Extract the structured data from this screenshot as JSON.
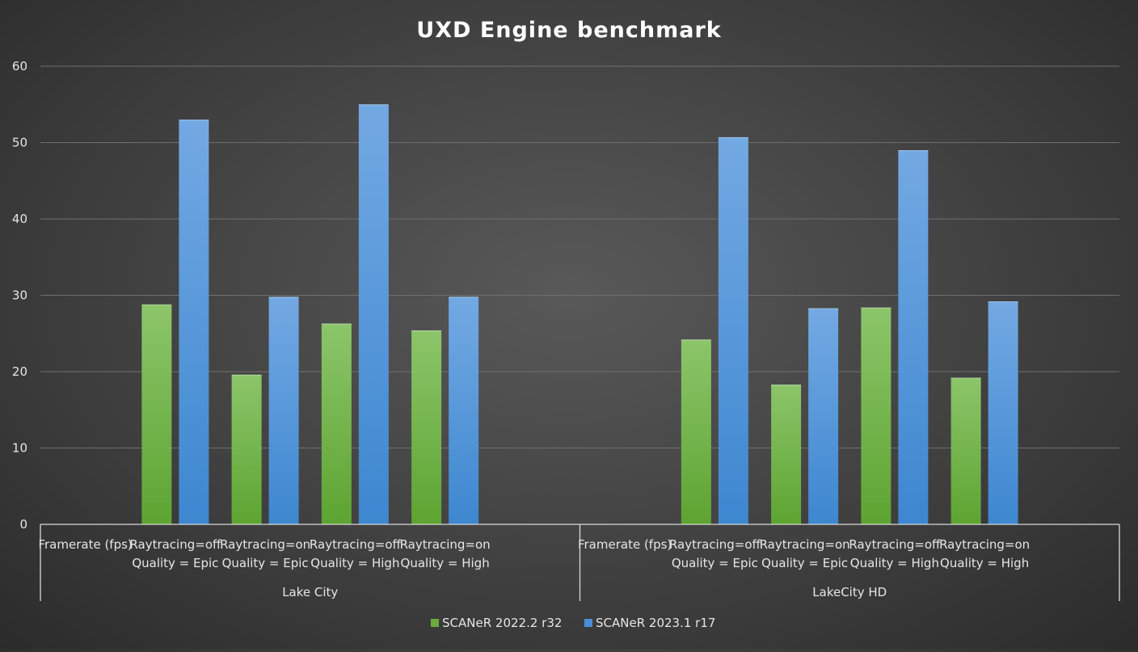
{
  "chart_data": {
    "type": "bar",
    "title": "UXD Engine benchmark",
    "ylim": [
      0,
      60
    ],
    "yticks": [
      0,
      10,
      20,
      30,
      40,
      50,
      60
    ],
    "grid": true,
    "legend_position": "bottom",
    "groups": [
      {
        "name": "Lake City",
        "categories": [
          [
            "Framerate (fps)"
          ],
          [
            "Raytracing=off",
            "Quality = Epic"
          ],
          [
            "Raytracing=on",
            "Quality = Epic"
          ],
          [
            "Raytracing=off",
            "Quality = High"
          ],
          [
            "Raytracing=on",
            "Quality = High"
          ]
        ]
      },
      {
        "name": "LakeCity HD",
        "categories": [
          [
            "Framerate (fps)"
          ],
          [
            "Raytracing=off",
            "Quality = Epic"
          ],
          [
            "Raytracing=on",
            "Quality = Epic"
          ],
          [
            "Raytracing=off",
            "Quality = High"
          ],
          [
            "Raytracing=on",
            "Quality = High"
          ]
        ]
      }
    ],
    "series": [
      {
        "name": "SCANeR 2022.2 r32",
        "color": "#6aac3c",
        "values": [
          [
            null,
            28.8,
            19.6,
            26.3,
            25.4
          ],
          [
            null,
            24.2,
            18.3,
            28.4,
            19.2
          ]
        ]
      },
      {
        "name": "SCANeR 2023.1 r17",
        "color": "#4a8fd6",
        "values": [
          [
            null,
            53.0,
            29.8,
            55.0,
            29.8
          ],
          [
            null,
            50.7,
            28.3,
            49.0,
            29.2
          ]
        ]
      }
    ]
  }
}
